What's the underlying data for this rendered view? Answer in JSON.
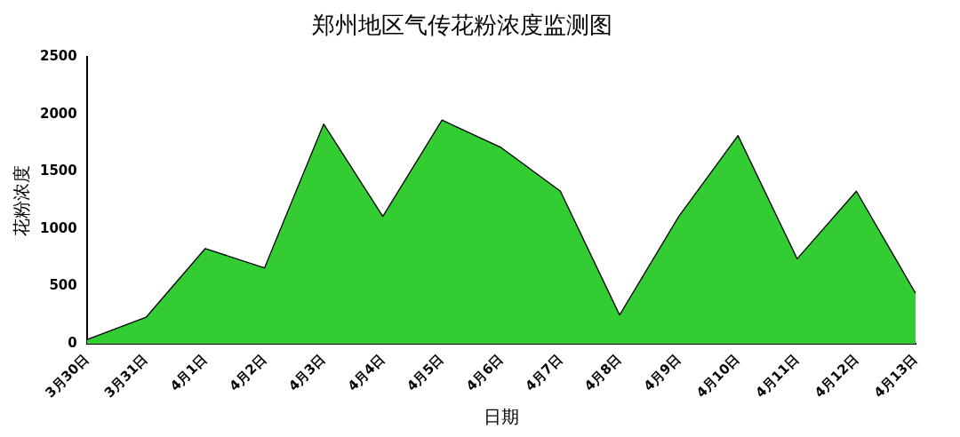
{
  "chart_data": {
    "type": "area",
    "title": "郑州地区气传花粉浓度监测图",
    "xlabel": "日期",
    "ylabel": "花粉浓度",
    "categories": [
      "3月30日",
      "3月31日",
      "4月1日",
      "4月2日",
      "4月3日",
      "4月4日",
      "4月5日",
      "4月6日",
      "4月7日",
      "4月8日",
      "4月9日",
      "4月10日",
      "4月11日",
      "4月12日",
      "4月13日"
    ],
    "series": [
      {
        "color": "#33cc33",
        "values": [
          35,
          230,
          830,
          660,
          1915,
          1110,
          1950,
          1710,
          1330,
          250,
          1110,
          1815,
          740,
          1330,
          440
        ]
      }
    ],
    "ylim": [
      0,
      2500
    ],
    "yticks": [
      0,
      500,
      1000,
      1500,
      2000,
      2500
    ],
    "grid": false,
    "legend": false,
    "marker": "none",
    "line_style": "solid"
  }
}
